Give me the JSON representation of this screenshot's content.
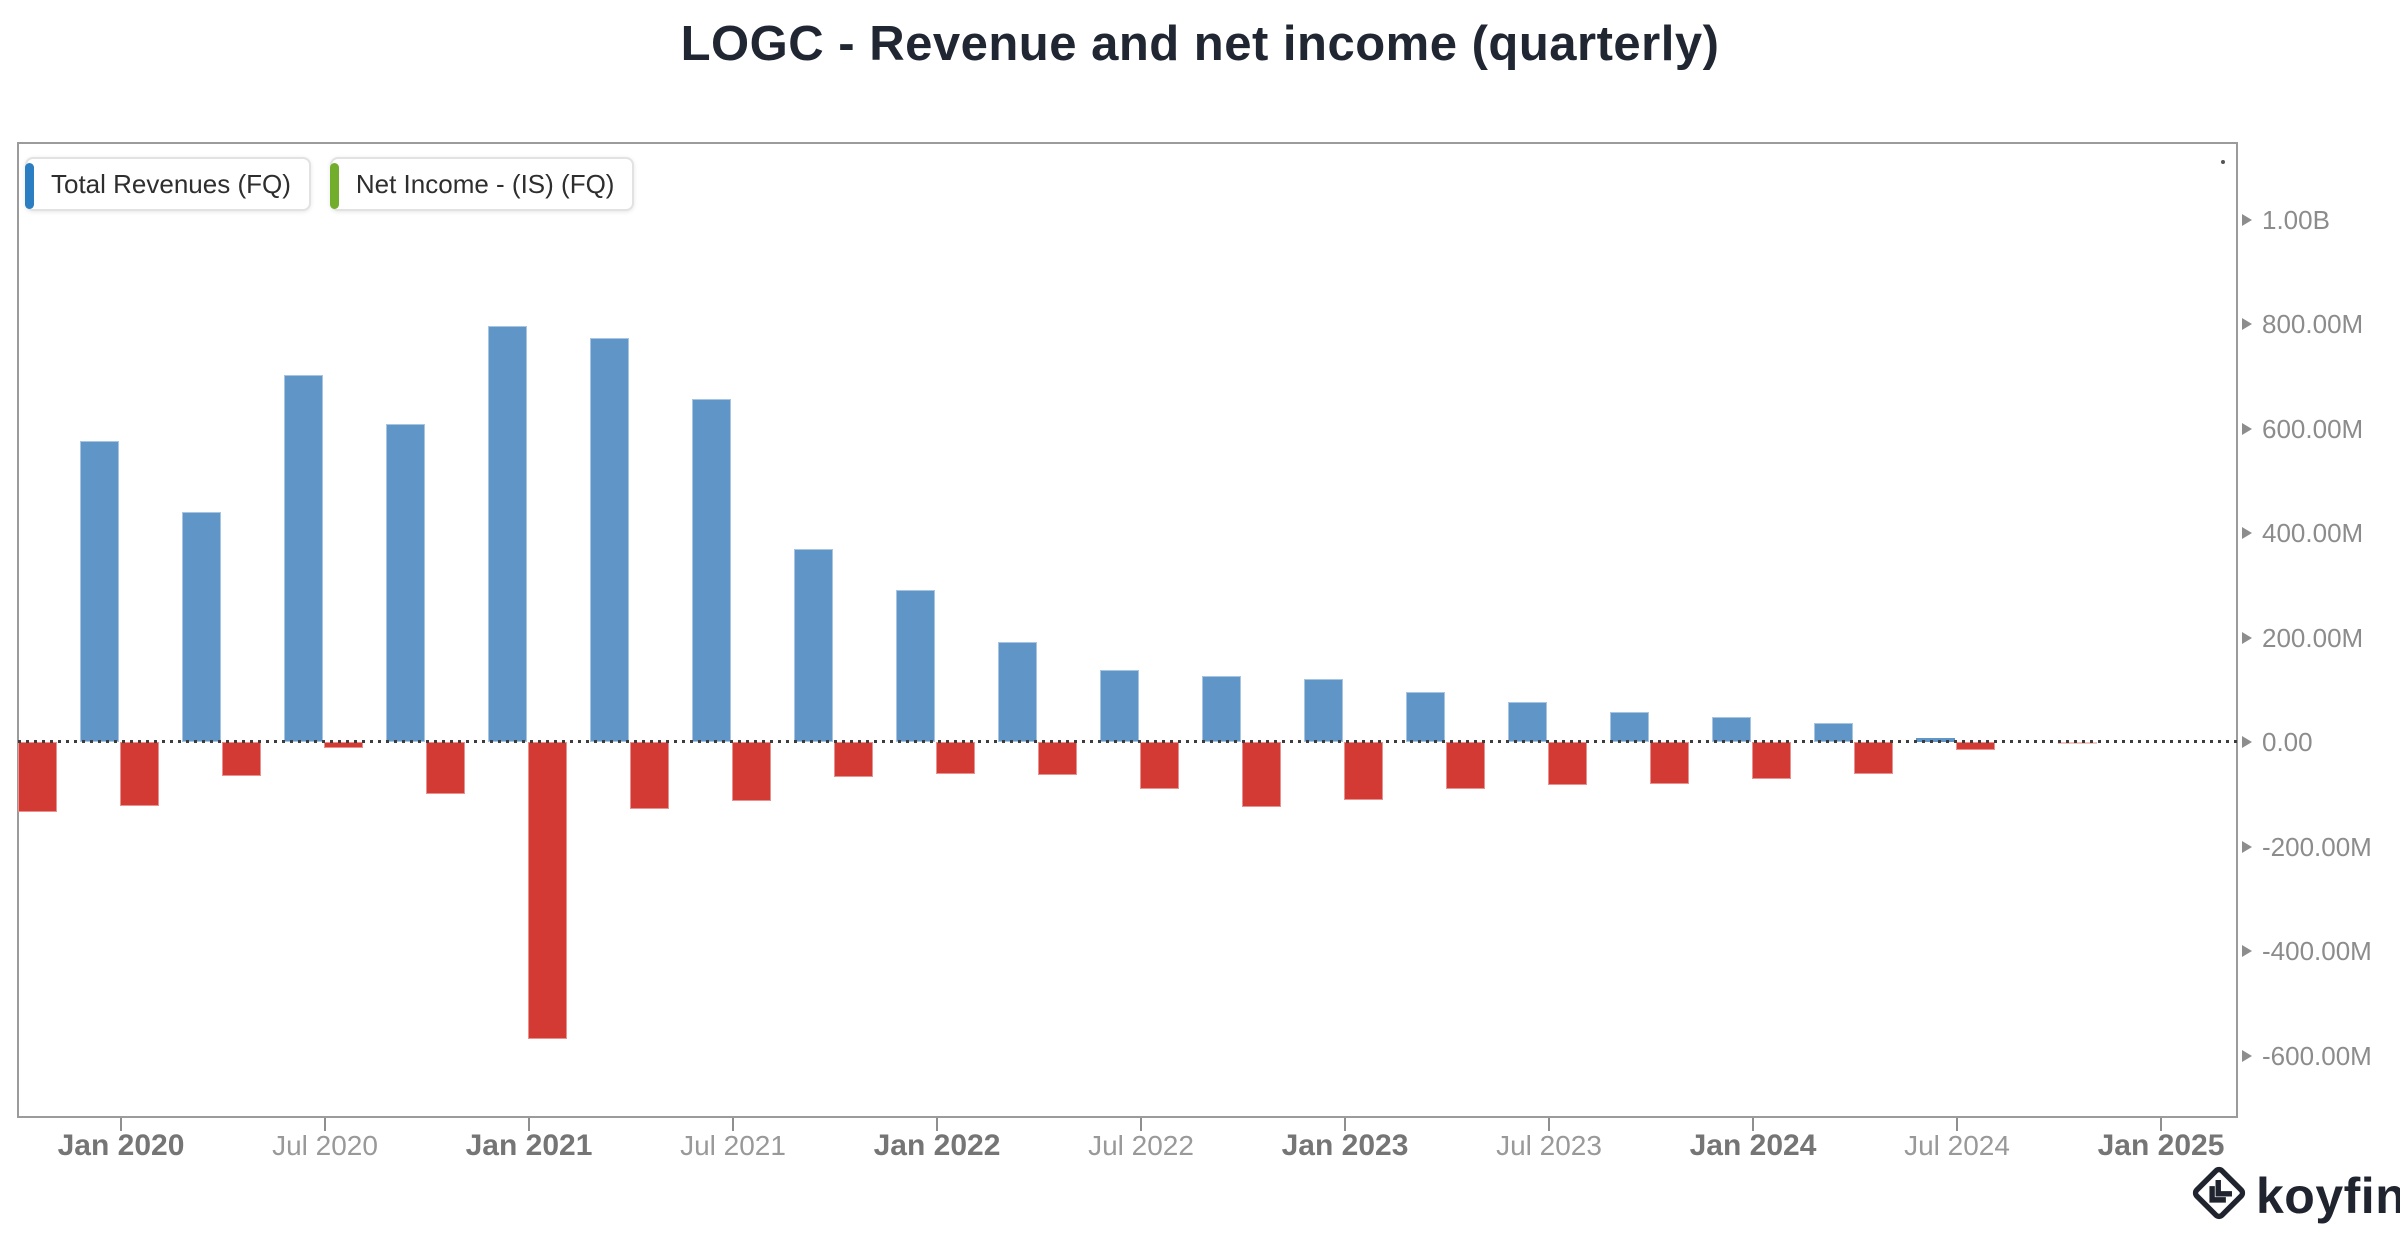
{
  "title": "LOGC - Revenue and net income (quarterly)",
  "legend": [
    {
      "label": "Total Revenues (FQ)",
      "accent_color": "#2b7ec1"
    },
    {
      "label": "Net Income - (IS) (FQ)",
      "accent_color": "#72ae2b"
    }
  ],
  "watermark": {
    "brand": "koyfin"
  },
  "colors": {
    "revenue_bar": "#6095c7",
    "net_income_bar": "#d43a34",
    "net_income_partial": "#f3c5c3",
    "axis_text": "#8c8c8c",
    "axis_text_bold": "#757575",
    "title_text": "#202732",
    "plot_border": "#9b9b9b",
    "zero_line": "#3d3d3d",
    "brand": "#20242f"
  },
  "chart_data": {
    "type": "bar",
    "title": "LOGC - Revenue and net income (quarterly)",
    "unit": "USD",
    "x": [
      "Oct 2019",
      "Jan 2020",
      "Apr 2020",
      "Jul 2020",
      "Oct 2020",
      "Jan 2021",
      "Apr 2021",
      "Jul 2021",
      "Oct 2021",
      "Jan 2022",
      "Apr 2022",
      "Jul 2022",
      "Oct 2022",
      "Jan 2023",
      "Apr 2023",
      "Jul 2023",
      "Oct 2023",
      "Jan 2024",
      "Apr 2024",
      "Jul 2024",
      "Oct 2024"
    ],
    "series": [
      {
        "name": "Total Revenues (FQ)",
        "color": "#6095c7",
        "values_millions": [
          null,
          577,
          440,
          703,
          608,
          796,
          774,
          657,
          370,
          291,
          192,
          137,
          126,
          121,
          96,
          77,
          57,
          48,
          36,
          8,
          null
        ]
      },
      {
        "name": "Net Income - (IS) (FQ)",
        "color": "#d43a34",
        "values_millions": [
          -134,
          -123,
          -66,
          -11,
          -100,
          -569,
          -128,
          -113,
          -67,
          -61,
          -63,
          -90,
          -124,
          -111,
          -90,
          -82,
          -80,
          -70,
          -62,
          -15,
          -3
        ],
        "partial_indices": [
          20
        ]
      }
    ],
    "y_axis": {
      "side": "right",
      "ticks": [
        {
          "v": 1000,
          "label": "1.00B"
        },
        {
          "v": 800,
          "label": "800.00M"
        },
        {
          "v": 600,
          "label": "600.00M"
        },
        {
          "v": 400,
          "label": "400.00M"
        },
        {
          "v": 200,
          "label": "200.00M"
        },
        {
          "v": 0,
          "label": "0.00"
        },
        {
          "v": -200,
          "label": "-200.00M"
        },
        {
          "v": -400,
          "label": "-400.00M"
        },
        {
          "v": -600,
          "label": "-600.00M"
        }
      ]
    },
    "x_axis": {
      "labels": [
        {
          "text": "Jan 2020",
          "bold": true
        },
        {
          "text": "Jul 2020",
          "bold": false
        },
        {
          "text": "Jan 2021",
          "bold": true
        },
        {
          "text": "Jul 2021",
          "bold": false
        },
        {
          "text": "Jan 2022",
          "bold": true
        },
        {
          "text": "Jul 2022",
          "bold": false
        },
        {
          "text": "Jan 2023",
          "bold": true
        },
        {
          "text": "Jul 2023",
          "bold": false
        },
        {
          "text": "Jan 2024",
          "bold": true
        },
        {
          "text": "Jul 2024",
          "bold": false
        },
        {
          "text": "Jan 2025",
          "bold": true
        }
      ]
    },
    "ylim": [
      -719,
      1146
    ],
    "zero_line_dotted": true,
    "legend_position": "top-left",
    "grouping": "paired bars at quarter-end ticks: revenue left of tick, net income right of tick"
  }
}
